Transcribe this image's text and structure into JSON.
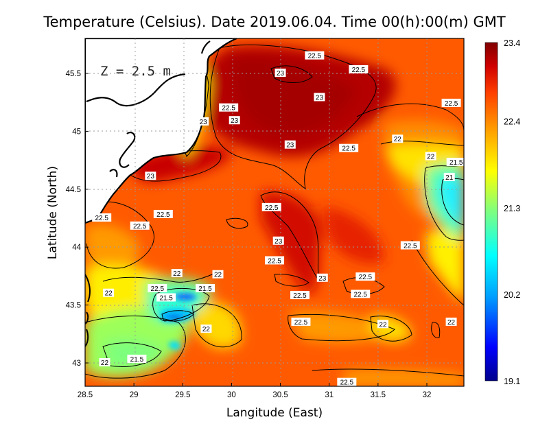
{
  "title": "Temperature (Celsius). Date 2019.06.04. Time 00(h):00(m)  GMT",
  "annotation": "Z = 2.5 m",
  "xlabel": "Langitude (East)",
  "ylabel": "Latitude (North)",
  "colors": {
    "land": "#ffffff",
    "coast": "#000000",
    "grid": "#b0b0b0",
    "colormap": [
      "#00008c",
      "#0000ff",
      "#00a0ff",
      "#00ffff",
      "#7dff80",
      "#ffff00",
      "#ffa000",
      "#ff4000",
      "#d00000",
      "#800000"
    ]
  },
  "chart_data": {
    "type": "heatmap",
    "variable": "Temperature (Celsius)",
    "xlim": [
      28.5,
      32.4
    ],
    "ylim": [
      42.8,
      45.8
    ],
    "x_ticks": [
      28.5,
      29,
      29.5,
      30,
      30.5,
      31,
      31.5,
      32
    ],
    "x_tick_labels": [
      "28.5",
      "29",
      "29.5",
      "30",
      "30.5",
      "31",
      "31.5",
      "32"
    ],
    "y_ticks": [
      43,
      43.5,
      44,
      44.5,
      45,
      45.5
    ],
    "y_tick_labels": [
      "43",
      "43.5",
      "44",
      "44.5",
      "45",
      "45.5"
    ],
    "grid": true,
    "colorbar": {
      "min": 19.1,
      "max": 23.4,
      "tick_labels": [
        "23.4",
        "22.4",
        "21.3",
        "20.2",
        "19.1"
      ],
      "tick_values": [
        23.4,
        22.4,
        21.3,
        20.2,
        19.1
      ]
    },
    "contour_labels": [
      {
        "text": "22.5",
        "lon": 30.85,
        "lat": 45.65
      },
      {
        "text": "22.5",
        "lon": 31.3,
        "lat": 45.53
      },
      {
        "text": "23",
        "lon": 30.5,
        "lat": 45.5
      },
      {
        "text": "23",
        "lon": 30.9,
        "lat": 45.29
      },
      {
        "text": "22.5",
        "lon": 32.25,
        "lat": 45.24
      },
      {
        "text": "22.5",
        "lon": 29.97,
        "lat": 45.2
      },
      {
        "text": "23",
        "lon": 29.71,
        "lat": 45.08
      },
      {
        "text": "23",
        "lon": 30.03,
        "lat": 45.09
      },
      {
        "text": "23",
        "lon": 30.6,
        "lat": 44.88
      },
      {
        "text": "22.5",
        "lon": 31.2,
        "lat": 44.85
      },
      {
        "text": "22",
        "lon": 31.7,
        "lat": 44.93
      },
      {
        "text": "22",
        "lon": 32.04,
        "lat": 44.78
      },
      {
        "text": "21.5",
        "lon": 32.3,
        "lat": 44.73
      },
      {
        "text": "21",
        "lon": 32.23,
        "lat": 44.6
      },
      {
        "text": "23",
        "lon": 29.17,
        "lat": 44.61
      },
      {
        "text": "22.5",
        "lon": 29.3,
        "lat": 44.28
      },
      {
        "text": "22.5",
        "lon": 28.67,
        "lat": 44.25
      },
      {
        "text": "22.5",
        "lon": 30.41,
        "lat": 44.34
      },
      {
        "text": "22.5",
        "lon": 29.06,
        "lat": 44.18
      },
      {
        "text": "23",
        "lon": 30.48,
        "lat": 44.05
      },
      {
        "text": "22.5",
        "lon": 31.83,
        "lat": 44.01
      },
      {
        "text": "22.5",
        "lon": 30.44,
        "lat": 43.88
      },
      {
        "text": "22",
        "lon": 29.44,
        "lat": 43.77
      },
      {
        "text": "22",
        "lon": 29.86,
        "lat": 43.76
      },
      {
        "text": "23",
        "lon": 30.93,
        "lat": 43.73
      },
      {
        "text": "22.5",
        "lon": 31.37,
        "lat": 43.74
      },
      {
        "text": "22.5",
        "lon": 29.24,
        "lat": 43.64
      },
      {
        "text": "21.5",
        "lon": 29.73,
        "lat": 43.64
      },
      {
        "text": "22",
        "lon": 28.74,
        "lat": 43.6
      },
      {
        "text": "22.5",
        "lon": 30.7,
        "lat": 43.58
      },
      {
        "text": "22.5",
        "lon": 31.32,
        "lat": 43.59
      },
      {
        "text": "21.5",
        "lon": 29.33,
        "lat": 43.56
      },
      {
        "text": "22.5",
        "lon": 30.71,
        "lat": 43.35
      },
      {
        "text": "22",
        "lon": 32.25,
        "lat": 43.35
      },
      {
        "text": "22",
        "lon": 31.55,
        "lat": 43.33
      },
      {
        "text": "22",
        "lon": 29.74,
        "lat": 43.29
      },
      {
        "text": "21.5",
        "lon": 29.03,
        "lat": 43.03
      },
      {
        "text": "22",
        "lon": 28.7,
        "lat": 43.0
      },
      {
        "text": "22.5",
        "lon": 31.18,
        "lat": 42.83
      }
    ]
  }
}
